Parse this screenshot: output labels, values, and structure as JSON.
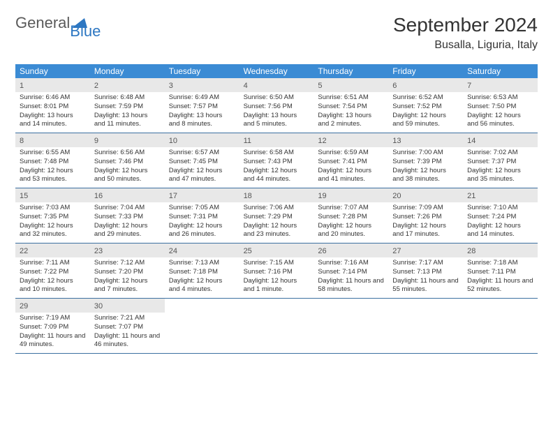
{
  "logo": {
    "text1": "General",
    "text2": "Blue"
  },
  "title": "September 2024",
  "location": "Busalla, Liguria, Italy",
  "weekdays": [
    "Sunday",
    "Monday",
    "Tuesday",
    "Wednesday",
    "Thursday",
    "Friday",
    "Saturday"
  ],
  "colors": {
    "header_bg": "#3b8bd4",
    "daynum_bg": "#e8e8e8",
    "row_border": "#3b6fa0",
    "logo_blue": "#2d77c2",
    "logo_gray": "#5a5a5a"
  },
  "days": [
    {
      "n": "1",
      "sr": "6:46 AM",
      "ss": "8:01 PM",
      "dl": "13 hours and 14 minutes."
    },
    {
      "n": "2",
      "sr": "6:48 AM",
      "ss": "7:59 PM",
      "dl": "13 hours and 11 minutes."
    },
    {
      "n": "3",
      "sr": "6:49 AM",
      "ss": "7:57 PM",
      "dl": "13 hours and 8 minutes."
    },
    {
      "n": "4",
      "sr": "6:50 AM",
      "ss": "7:56 PM",
      "dl": "13 hours and 5 minutes."
    },
    {
      "n": "5",
      "sr": "6:51 AM",
      "ss": "7:54 PM",
      "dl": "13 hours and 2 minutes."
    },
    {
      "n": "6",
      "sr": "6:52 AM",
      "ss": "7:52 PM",
      "dl": "12 hours and 59 minutes."
    },
    {
      "n": "7",
      "sr": "6:53 AM",
      "ss": "7:50 PM",
      "dl": "12 hours and 56 minutes."
    },
    {
      "n": "8",
      "sr": "6:55 AM",
      "ss": "7:48 PM",
      "dl": "12 hours and 53 minutes."
    },
    {
      "n": "9",
      "sr": "6:56 AM",
      "ss": "7:46 PM",
      "dl": "12 hours and 50 minutes."
    },
    {
      "n": "10",
      "sr": "6:57 AM",
      "ss": "7:45 PM",
      "dl": "12 hours and 47 minutes."
    },
    {
      "n": "11",
      "sr": "6:58 AM",
      "ss": "7:43 PM",
      "dl": "12 hours and 44 minutes."
    },
    {
      "n": "12",
      "sr": "6:59 AM",
      "ss": "7:41 PM",
      "dl": "12 hours and 41 minutes."
    },
    {
      "n": "13",
      "sr": "7:00 AM",
      "ss": "7:39 PM",
      "dl": "12 hours and 38 minutes."
    },
    {
      "n": "14",
      "sr": "7:02 AM",
      "ss": "7:37 PM",
      "dl": "12 hours and 35 minutes."
    },
    {
      "n": "15",
      "sr": "7:03 AM",
      "ss": "7:35 PM",
      "dl": "12 hours and 32 minutes."
    },
    {
      "n": "16",
      "sr": "7:04 AM",
      "ss": "7:33 PM",
      "dl": "12 hours and 29 minutes."
    },
    {
      "n": "17",
      "sr": "7:05 AM",
      "ss": "7:31 PM",
      "dl": "12 hours and 26 minutes."
    },
    {
      "n": "18",
      "sr": "7:06 AM",
      "ss": "7:29 PM",
      "dl": "12 hours and 23 minutes."
    },
    {
      "n": "19",
      "sr": "7:07 AM",
      "ss": "7:28 PM",
      "dl": "12 hours and 20 minutes."
    },
    {
      "n": "20",
      "sr": "7:09 AM",
      "ss": "7:26 PM",
      "dl": "12 hours and 17 minutes."
    },
    {
      "n": "21",
      "sr": "7:10 AM",
      "ss": "7:24 PM",
      "dl": "12 hours and 14 minutes."
    },
    {
      "n": "22",
      "sr": "7:11 AM",
      "ss": "7:22 PM",
      "dl": "12 hours and 10 minutes."
    },
    {
      "n": "23",
      "sr": "7:12 AM",
      "ss": "7:20 PM",
      "dl": "12 hours and 7 minutes."
    },
    {
      "n": "24",
      "sr": "7:13 AM",
      "ss": "7:18 PM",
      "dl": "12 hours and 4 minutes."
    },
    {
      "n": "25",
      "sr": "7:15 AM",
      "ss": "7:16 PM",
      "dl": "12 hours and 1 minute."
    },
    {
      "n": "26",
      "sr": "7:16 AM",
      "ss": "7:14 PM",
      "dl": "11 hours and 58 minutes."
    },
    {
      "n": "27",
      "sr": "7:17 AM",
      "ss": "7:13 PM",
      "dl": "11 hours and 55 minutes."
    },
    {
      "n": "28",
      "sr": "7:18 AM",
      "ss": "7:11 PM",
      "dl": "11 hours and 52 minutes."
    },
    {
      "n": "29",
      "sr": "7:19 AM",
      "ss": "7:09 PM",
      "dl": "11 hours and 49 minutes."
    },
    {
      "n": "30",
      "sr": "7:21 AM",
      "ss": "7:07 PM",
      "dl": "11 hours and 46 minutes."
    }
  ],
  "labels": {
    "sunrise": "Sunrise: ",
    "sunset": "Sunset: ",
    "daylight": "Daylight: "
  }
}
